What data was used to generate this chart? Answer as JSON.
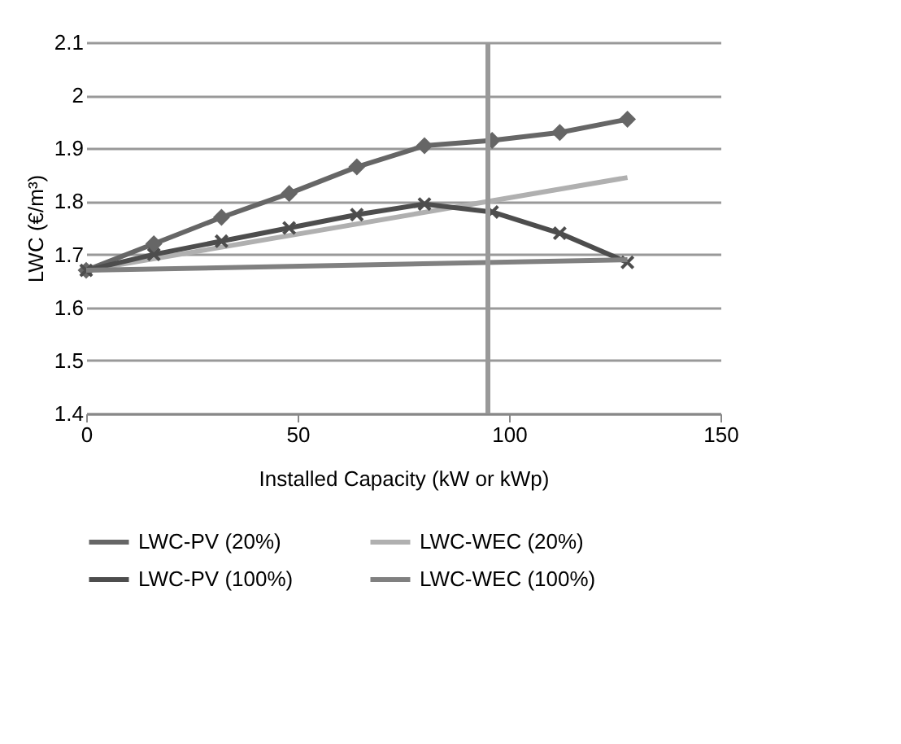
{
  "chart_data": {
    "type": "line",
    "xlabel": "Installed Capacity (kW or kWp)",
    "ylabel": "LWC (€/m³)",
    "xlim": [
      0,
      150
    ],
    "xticks": [
      0,
      50,
      100,
      150
    ],
    "ylim": [
      1.4,
      2.1
    ],
    "yticks": [
      1.4,
      1.5,
      1.6,
      1.7,
      1.8,
      1.9,
      2,
      2.1
    ],
    "grid": "y",
    "legend": "bottom",
    "series": [
      {
        "name": "LWC-PV (20%)",
        "color": "#666666",
        "marker": "diamond",
        "x": [
          0,
          16,
          32,
          48,
          64,
          80,
          96,
          112,
          128
        ],
        "values": [
          1.67,
          1.72,
          1.77,
          1.815,
          1.865,
          1.905,
          1.915,
          1.93,
          1.955
        ]
      },
      {
        "name": "LWC-WEC (20%)",
        "color": "#b0b0b0",
        "marker": "none",
        "x": [
          0,
          128
        ],
        "values": [
          1.67,
          1.845
        ]
      },
      {
        "name": "LWC-PV (100%)",
        "color": "#4d4d4d",
        "marker": "cross",
        "x": [
          0,
          16,
          32,
          48,
          64,
          80,
          96,
          112,
          128
        ],
        "values": [
          1.67,
          1.7,
          1.725,
          1.75,
          1.775,
          1.795,
          1.78,
          1.74,
          1.685
        ]
      },
      {
        "name": "LWC-WEC (100%)",
        "color": "#808080",
        "marker": "none",
        "x": [
          0,
          128
        ],
        "values": [
          1.67,
          1.69
        ]
      }
    ],
    "ref_lines": [
      {
        "axis": "x",
        "value": 95,
        "color": "#999999"
      }
    ]
  }
}
